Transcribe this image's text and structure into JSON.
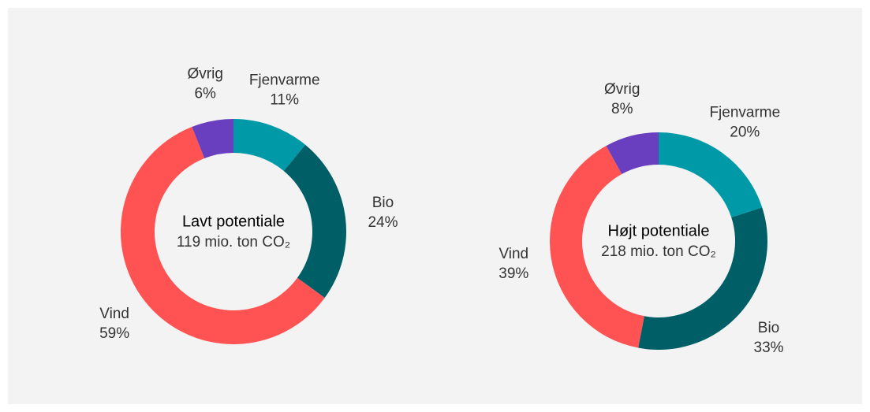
{
  "chart_data": [
    {
      "type": "donut",
      "title": "Lavt potentiale",
      "subtitle": "119 mio. ton CO₂",
      "categories": [
        "Fjenvarme",
        "Bio",
        "Vind",
        "Øvrig"
      ],
      "values": [
        11,
        24,
        59,
        6
      ],
      "value_labels": [
        "11%",
        "24%",
        "59%",
        "6%"
      ],
      "colors": [
        "#0099a8",
        "#005f66",
        "#ff5252",
        "#6a3fbf"
      ]
    },
    {
      "type": "donut",
      "title": "Højt potentiale",
      "subtitle": "218 mio. ton CO₂",
      "categories": [
        "Fjenvarme",
        "Bio",
        "Vind",
        "Øvrig"
      ],
      "values": [
        20,
        33,
        39,
        8
      ],
      "value_labels": [
        "20%",
        "33%",
        "39%",
        "8%"
      ],
      "colors": [
        "#0099a8",
        "#005f66",
        "#ff5252",
        "#6a3fbf"
      ]
    }
  ]
}
